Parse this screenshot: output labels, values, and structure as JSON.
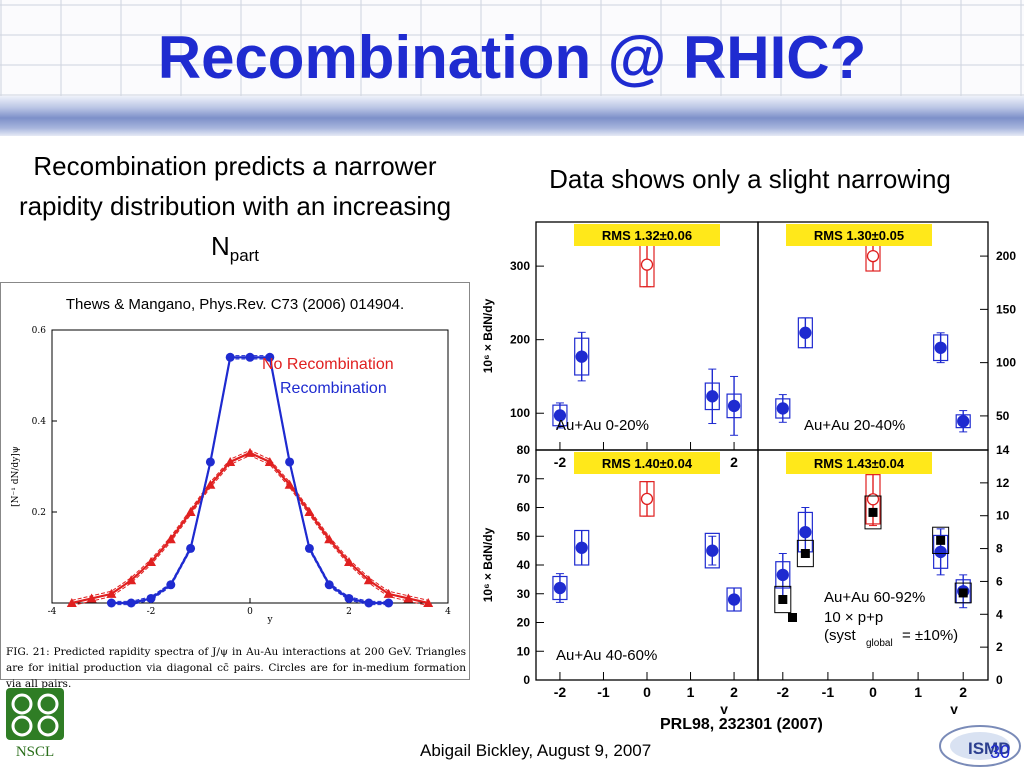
{
  "slide": {
    "title": "Recombination @ RHIC?",
    "left_text_main": "Recombination predicts a narrower rapidity distribution with an increasing N",
    "left_text_sub": "part",
    "right_text": "Data shows only a slight narrowing",
    "citation": "Thews & Mangano, Phys.Rev. C73 (2006) 014904.",
    "legend_no_recombination": "No Recombination",
    "legend_recombination": "Recombination",
    "fig_caption": "FIG. 21:  Predicted rapidity spectra of J/ψ in Au-Au interactions at 200 GeV. Triangles are for initial production via diagonal cc̄ pairs.  Circles are for in-medium formation via all pairs.",
    "reference": "PRL98, 232301 (2007)",
    "footer": "Abigail Bickley, August 9, 2007",
    "page_number": "30",
    "nscl_label": "NSCL",
    "ismd_label": "ISMD"
  },
  "colors": {
    "title": "#1f2bd0",
    "no_recombination": "#e02020",
    "recombination": "#1f2bd0",
    "rms_box": "#ffe81a"
  },
  "chart_data": [
    {
      "type": "line",
      "ylabel": "[N⁻¹ dN/dy]ψ",
      "xlabel": "y",
      "xlim": [
        -4,
        4
      ],
      "ylim": [
        0,
        0.6
      ],
      "x_ticks": [
        "-4",
        "-2",
        "0",
        "2",
        "4"
      ],
      "y_ticks": [
        "0.2",
        "0.4",
        "0.6"
      ],
      "series": [
        {
          "name": "No Recombination",
          "color": "#e02020",
          "marker": "triangle",
          "x": [
            -3.6,
            -3.2,
            -2.8,
            -2.4,
            -2.0,
            -1.6,
            -1.2,
            -0.8,
            -0.4,
            0.0,
            0.4,
            0.8,
            1.2,
            1.6,
            2.0,
            2.4,
            2.8,
            3.2,
            3.6
          ],
          "values": [
            0.0,
            0.01,
            0.02,
            0.05,
            0.09,
            0.14,
            0.2,
            0.26,
            0.31,
            0.33,
            0.31,
            0.26,
            0.2,
            0.14,
            0.09,
            0.05,
            0.02,
            0.01,
            0.0
          ]
        },
        {
          "name": "Recombination",
          "color": "#1f2bd0",
          "marker": "circle",
          "x": [
            -2.8,
            -2.4,
            -2.0,
            -1.6,
            -1.2,
            -0.8,
            -0.4,
            0.0,
            0.4,
            0.8,
            1.2,
            1.6,
            2.0,
            2.4,
            2.8
          ],
          "values": [
            0.0,
            0.0,
            0.01,
            0.04,
            0.12,
            0.31,
            0.54,
            0.54,
            0.54,
            0.31,
            0.12,
            0.04,
            0.01,
            0.0,
            0.0
          ]
        }
      ]
    },
    {
      "type": "scatter",
      "panel": "Au+Au 0-20%",
      "rms": "RMS 1.32±0.06",
      "ylabel": "10⁶ × BdN/dy",
      "y_ticks": [
        "100",
        "200",
        "300"
      ],
      "x_ticks": [
        "-2",
        "-1",
        "0",
        "1",
        "2"
      ],
      "ylim": [
        50,
        360
      ],
      "points": [
        {
          "x": -2.0,
          "y": 97,
          "err": 17,
          "sys": 14,
          "color": "#1f2bd0",
          "open": false
        },
        {
          "x": -1.5,
          "y": 177,
          "err": 33,
          "sys": 25,
          "color": "#1f2bd0",
          "open": false
        },
        {
          "x": 0.0,
          "y": 302,
          "err": 30,
          "sys": 30,
          "color": "#e02020",
          "open": true
        },
        {
          "x": 1.5,
          "y": 123,
          "err": 37,
          "sys": 18,
          "color": "#1f2bd0",
          "open": false
        },
        {
          "x": 2.0,
          "y": 110,
          "err": 40,
          "sys": 16,
          "color": "#1f2bd0",
          "open": false
        }
      ]
    },
    {
      "type": "scatter",
      "panel": "Au+Au 20-40%",
      "rms": "RMS 1.30±0.05",
      "y_ticks": [
        "50",
        "100",
        "150",
        "200"
      ],
      "x_ticks": [],
      "ylim": [
        18,
        232
      ],
      "points": [
        {
          "x": -2.0,
          "y": 57,
          "err": 13,
          "sys": 9,
          "color": "#1f2bd0",
          "open": false
        },
        {
          "x": -1.5,
          "y": 128,
          "err": 14,
          "sys": 14,
          "color": "#1f2bd0",
          "open": false
        },
        {
          "x": 0.0,
          "y": 200,
          "err": 14,
          "sys": 14,
          "color": "#e02020",
          "open": true
        },
        {
          "x": 1.5,
          "y": 114,
          "err": 14,
          "sys": 12,
          "color": "#1f2bd0",
          "open": false
        },
        {
          "x": 2.0,
          "y": 45,
          "err": 10,
          "sys": 6,
          "color": "#1f2bd0",
          "open": false
        }
      ]
    },
    {
      "type": "scatter",
      "panel": "Au+Au 40-60%",
      "rms": "RMS 1.40±0.04",
      "ylabel": "10⁶ × BdN/dy",
      "xlabel": "y",
      "y_ticks": [
        "0",
        "10",
        "20",
        "30",
        "40",
        "50",
        "60",
        "70",
        "80"
      ],
      "x_ticks": [
        "-2",
        "-1",
        "0",
        "1",
        "2"
      ],
      "ylim": [
        0,
        80
      ],
      "points": [
        {
          "x": -2.0,
          "y": 32,
          "err": 5,
          "sys": 4,
          "color": "#1f2bd0",
          "open": false
        },
        {
          "x": -1.5,
          "y": 46,
          "err": 6,
          "sys": 6,
          "color": "#1f2bd0",
          "open": false
        },
        {
          "x": 0.0,
          "y": 63,
          "err": 6,
          "sys": 6,
          "color": "#e02020",
          "open": true
        },
        {
          "x": 1.5,
          "y": 45,
          "err": 5,
          "sys": 6,
          "color": "#1f2bd0",
          "open": false
        },
        {
          "x": 2.0,
          "y": 28,
          "err": 4,
          "sys": 4,
          "color": "#1f2bd0",
          "open": false
        }
      ]
    },
    {
      "type": "scatter",
      "panel": "Au+Au 60-92%",
      "rms": "RMS 1.43±0.04",
      "xlabel": "y",
      "legend": [
        "Au+Au 60-92%",
        "10 × p+p",
        "(syst",
        "global",
        "= ±10%)"
      ],
      "y_ticks": [
        "0",
        "2",
        "4",
        "6",
        "8",
        "10",
        "12",
        "14"
      ],
      "x_ticks": [
        "-2",
        "-1",
        "0",
        "1",
        "2"
      ],
      "ylim": [
        0,
        14
      ],
      "points": [
        {
          "x": -2.0,
          "y": 6.4,
          "err": 1.3,
          "sys": 0.8,
          "color": "#1f2bd0",
          "open": false
        },
        {
          "x": -1.5,
          "y": 9.0,
          "err": 1.5,
          "sys": 1.2,
          "color": "#1f2bd0",
          "open": false
        },
        {
          "x": 0.0,
          "y": 11.0,
          "err": 1.6,
          "sys": 1.5,
          "color": "#e02020",
          "open": true
        },
        {
          "x": 1.5,
          "y": 7.8,
          "err": 1.4,
          "sys": 1.0,
          "color": "#1f2bd0",
          "open": false
        },
        {
          "x": 2.0,
          "y": 5.4,
          "err": 1.0,
          "sys": 0.7,
          "color": "#1f2bd0",
          "open": false
        }
      ],
      "pp_points": [
        {
          "x": -2.0,
          "y": 4.9,
          "sys": 0.8
        },
        {
          "x": -1.5,
          "y": 7.7,
          "sys": 0.8
        },
        {
          "x": 0.0,
          "y": 10.2,
          "sys": 1.0
        },
        {
          "x": 1.5,
          "y": 8.5,
          "sys": 0.8
        },
        {
          "x": 2.0,
          "y": 5.3,
          "sys": 0.6
        }
      ]
    }
  ]
}
